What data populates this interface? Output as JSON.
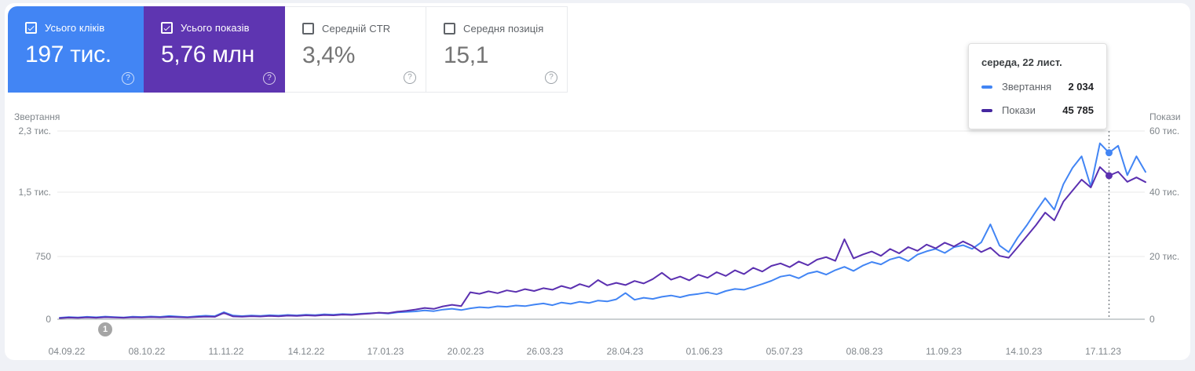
{
  "cards": [
    {
      "label": "Усього кліків",
      "value": "197 тис.",
      "checked": true,
      "color": "#4285f4"
    },
    {
      "label": "Усього показів",
      "value": "5,76 млн",
      "checked": true,
      "color": "#5e35b1"
    },
    {
      "label": "Середній CTR",
      "value": "3,4%",
      "checked": false,
      "color": "#ffffff"
    },
    {
      "label": "Середня позиція",
      "value": "15,1",
      "checked": false,
      "color": "#ffffff"
    }
  ],
  "tooltip": {
    "title": "середа, 22 лист.",
    "rows": [
      {
        "label": "Звертання",
        "value": "2 034",
        "color": "#4285f4"
      },
      {
        "label": "Покази",
        "value": "45 785",
        "color": "#4527a0"
      }
    ]
  },
  "annotation_badge": "1",
  "chart_data": {
    "type": "line",
    "title": "",
    "grid": true,
    "left_axis": {
      "title": "Звертання",
      "max": 2300,
      "ticks_top_to_bottom": [
        "2,3 тис.",
        "1,5 тис.",
        "750",
        "0"
      ]
    },
    "right_axis": {
      "title": "Покази",
      "max": 60000,
      "ticks_top_to_bottom": [
        "60 тис.",
        "40 тис.",
        "20 тис.",
        "0"
      ]
    },
    "x_tick_labels": [
      "04.09.22",
      "08.10.22",
      "11.11.22",
      "14.12.22",
      "17.01.23",
      "20.02.23",
      "26.03.23",
      "28.04.23",
      "01.06.23",
      "05.07.23",
      "08.08.23",
      "11.09.23",
      "14.10.23",
      "17.11.23"
    ],
    "hover_index": 115,
    "series": [
      {
        "name": "Звертання",
        "axis": "left",
        "color": "#4285f4",
        "values": [
          18,
          26,
          21,
          30,
          24,
          33,
          27,
          22,
          31,
          28,
          34,
          29,
          39,
          33,
          27,
          36,
          43,
          37,
          85,
          45,
          38,
          46,
          41,
          49,
          44,
          53,
          47,
          56,
          50,
          59,
          55,
          63,
          58,
          67,
          73,
          78,
          70,
          84,
          90,
          96,
          108,
          99,
          118,
          128,
          112,
          133,
          148,
          140,
          158,
          152,
          168,
          160,
          178,
          193,
          172,
          204,
          188,
          214,
          198,
          228,
          218,
          243,
          320,
          238,
          263,
          248,
          274,
          290,
          268,
          296,
          310,
          328,
          305,
          345,
          370,
          360,
          395,
          430,
          470,
          520,
          540,
          500,
          560,
          585,
          545,
          600,
          640,
          590,
          655,
          700,
          670,
          730,
          760,
          710,
          790,
          830,
          860,
          810,
          880,
          905,
          860,
          940,
          1160,
          900,
          820,
          1000,
          1150,
          1320,
          1480,
          1340,
          1650,
          1850,
          1990,
          1620,
          2150,
          2034,
          2120,
          1760,
          1990,
          1800
        ]
      },
      {
        "name": "Покази",
        "axis": "right",
        "color": "#5b30b0",
        "values": [
          350,
          520,
          430,
          610,
          480,
          650,
          540,
          470,
          620,
          560,
          680,
          590,
          760,
          660,
          570,
          720,
          860,
          780,
          2000,
          900,
          820,
          980,
          880,
          1060,
          950,
          1150,
          1040,
          1240,
          1120,
          1340,
          1250,
          1480,
          1380,
          1620,
          1800,
          2100,
          1950,
          2400,
          2700,
          3100,
          3600,
          3300,
          4100,
          4600,
          4200,
          8600,
          8100,
          8900,
          8300,
          9200,
          8700,
          9600,
          9000,
          9900,
          9400,
          10600,
          9800,
          11200,
          10300,
          12500,
          10800,
          11600,
          10900,
          12200,
          11400,
          12800,
          14800,
          12600,
          13600,
          12400,
          14200,
          13200,
          15000,
          13800,
          15600,
          14400,
          16400,
          15200,
          17000,
          17800,
          16600,
          18400,
          17200,
          19000,
          19800,
          18600,
          25500,
          19400,
          20600,
          21600,
          20200,
          22400,
          21000,
          23000,
          21800,
          23800,
          22600,
          24400,
          23200,
          24800,
          23400,
          21400,
          22800,
          20200,
          19600,
          23000,
          26500,
          30000,
          34000,
          31500,
          37500,
          41000,
          44500,
          42000,
          48500,
          45785,
          47000,
          43800,
          45200,
          43700
        ]
      }
    ]
  }
}
